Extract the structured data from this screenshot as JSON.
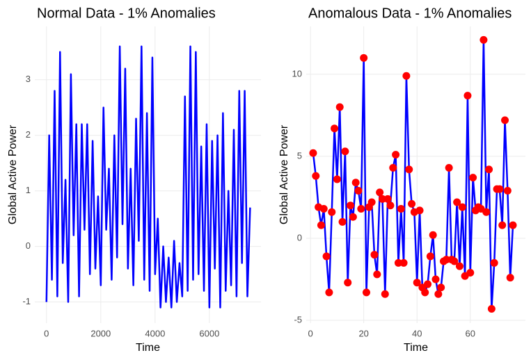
{
  "chart_data": [
    {
      "type": "line",
      "title": "Normal Data - 1% Anomalies",
      "x_label": "Time",
      "y_label": "Global Active Power",
      "x": [
        0,
        100,
        200,
        300,
        400,
        500,
        600,
        700,
        800,
        900,
        1000,
        1100,
        1200,
        1300,
        1400,
        1500,
        1600,
        1700,
        1800,
        1900,
        2000,
        2100,
        2200,
        2300,
        2400,
        2500,
        2600,
        2700,
        2800,
        2900,
        3000,
        3100,
        3200,
        3300,
        3400,
        3500,
        3600,
        3700,
        3800,
        3900,
        4000,
        4100,
        4200,
        4300,
        4400,
        4500,
        4600,
        4700,
        4800,
        4900,
        5000,
        5100,
        5200,
        5300,
        5400,
        5500,
        5600,
        5700,
        5800,
        5900,
        6000,
        6100,
        6200,
        6300,
        6400,
        6500,
        6600,
        6700,
        6800,
        6900,
        7000,
        7100,
        7200,
        7300,
        7400,
        7500
      ],
      "series": [
        {
          "color": "#0000ff",
          "values": [
            -1.0,
            2.0,
            -0.6,
            2.8,
            -0.9,
            3.5,
            -0.3,
            1.2,
            -1.0,
            3.1,
            0.2,
            2.2,
            -0.9,
            2.2,
            0.3,
            2.2,
            -0.5,
            1.9,
            -0.4,
            0.9,
            -0.7,
            2.5,
            0.3,
            1.4,
            -0.6,
            2.0,
            -0.2,
            3.6,
            0.4,
            3.2,
            -0.4,
            1.4,
            -0.7,
            2.3,
            0.1,
            3.6,
            -0.6,
            2.4,
            -0.8,
            3.4,
            -0.5,
            0.5,
            -1.1,
            0.0,
            -1.0,
            -0.2,
            -1.1,
            0.1,
            -1.0,
            -0.3,
            -0.9,
            2.7,
            -0.8,
            3.6,
            -0.6,
            3.5,
            -0.5,
            1.8,
            -0.8,
            2.2,
            -1.1,
            1.9,
            -0.4,
            2.0,
            -1.1,
            2.4,
            -0.8,
            1.0,
            -0.7,
            2.1,
            -0.9,
            2.8,
            -0.3,
            2.8,
            -0.9,
            0.7
          ]
        }
      ],
      "xlim": [
        -430,
        7900
      ],
      "ylim": [
        -1.38,
        3.96
      ],
      "xticks": [
        0,
        2000,
        4000,
        6000
      ],
      "yticks": [
        -1,
        0,
        1,
        2,
        3
      ],
      "grid": true
    },
    {
      "type": "line",
      "title": "Anomalous Data - 1% Anomalies",
      "x_label": "Time",
      "y_label": "Global Active Power",
      "x": [
        1,
        2,
        3,
        4,
        5,
        6,
        7,
        8,
        9,
        10,
        11,
        12,
        13,
        14,
        15,
        16,
        17,
        18,
        19,
        20,
        21,
        22,
        23,
        24,
        25,
        26,
        27,
        28,
        29,
        30,
        31,
        32,
        33,
        34,
        35,
        36,
        37,
        38,
        39,
        40,
        41,
        42,
        43,
        44,
        45,
        46,
        47,
        48,
        49,
        50,
        51,
        52,
        53,
        54,
        55,
        56,
        57,
        58,
        59,
        60,
        61,
        62,
        63,
        64,
        65,
        66,
        67,
        68,
        69,
        70,
        71,
        72,
        73,
        74,
        75,
        76
      ],
      "series": [
        {
          "color": "#0000ff",
          "marker_color": "#ff0000",
          "values": [
            5.2,
            3.8,
            1.9,
            0.8,
            1.8,
            -1.1,
            -3.3,
            1.6,
            6.7,
            3.6,
            8.0,
            1.0,
            5.3,
            -2.7,
            2.0,
            1.3,
            3.4,
            2.9,
            1.8,
            11.0,
            -3.3,
            1.9,
            2.2,
            -1.0,
            -2.2,
            2.8,
            2.4,
            -3.4,
            2.4,
            2.0,
            4.3,
            5.1,
            -1.5,
            1.8,
            -1.5,
            9.9,
            4.2,
            2.1,
            1.6,
            -2.7,
            1.7,
            -3.0,
            -3.3,
            -2.8,
            -1.1,
            0.2,
            -2.5,
            -3.4,
            -3.0,
            -1.4,
            -1.3,
            4.3,
            -1.3,
            -1.4,
            2.2,
            -1.7,
            1.9,
            -2.3,
            8.7,
            -2.1,
            3.7,
            1.7,
            1.9,
            1.8,
            12.1,
            1.6,
            4.2,
            -4.3,
            -1.5,
            3.0,
            3.0,
            0.8,
            7.2,
            2.9,
            -2.4,
            0.8
          ]
        }
      ],
      "xlim": [
        -1.6,
        80.7
      ],
      "ylim": [
        -5.17,
        12.92
      ],
      "xticks": [
        0,
        20,
        40,
        60
      ],
      "yticks": [
        -5,
        0,
        5,
        10
      ],
      "grid": true
    }
  ]
}
